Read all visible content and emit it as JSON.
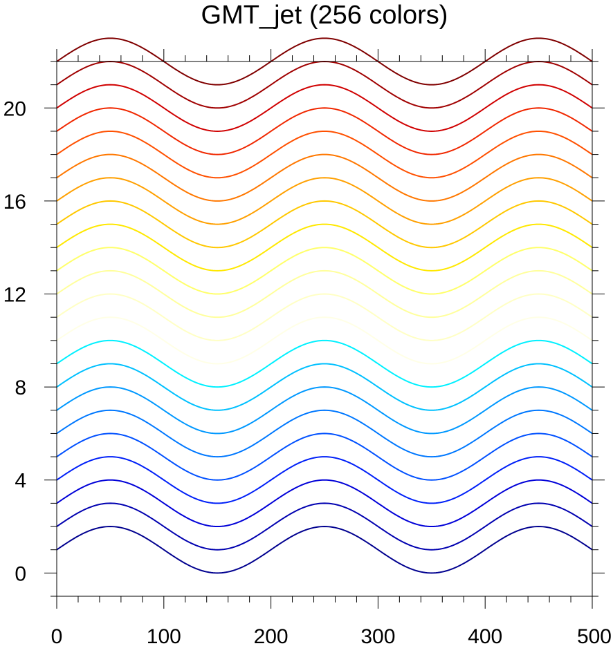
{
  "chart_data": {
    "type": "line",
    "title": "GMT_jet (256 colors)",
    "xlabel": "",
    "ylabel": "",
    "xlim": [
      0,
      500
    ],
    "ylim": [
      -1,
      22
    ],
    "x_ticks": [
      0,
      100,
      200,
      300,
      400,
      500
    ],
    "x_minor_step": 20,
    "y_ticks": [
      0,
      4,
      8,
      12,
      16,
      20
    ],
    "y_minor_step": 1,
    "grid": false,
    "legend": "none",
    "curve": {
      "function": "y = offset + 1 + sin(2*pi*(x/200))",
      "x": [
        0,
        50,
        100,
        150,
        200,
        250,
        300,
        350,
        400,
        450,
        500
      ],
      "y_relative_to_offset": [
        1,
        2,
        1,
        0,
        1,
        2,
        1,
        0,
        1,
        2,
        1
      ]
    },
    "series": [
      {
        "offset": 0,
        "color": "#00008f"
      },
      {
        "offset": 1,
        "color": "#0000b0"
      },
      {
        "offset": 2,
        "color": "#0000d8"
      },
      {
        "offset": 3,
        "color": "#0020f8"
      },
      {
        "offset": 4,
        "color": "#0050ff"
      },
      {
        "offset": 5,
        "color": "#0078ff"
      },
      {
        "offset": 6,
        "color": "#0098ff"
      },
      {
        "offset": 7,
        "color": "#00c0ff"
      },
      {
        "offset": 8,
        "color": "#00f0ff"
      },
      {
        "offset": 9,
        "color": "#ffffe6"
      },
      {
        "offset": 10,
        "color": "#ffffc4"
      },
      {
        "offset": 11,
        "color": "#ffff9c"
      },
      {
        "offset": 12,
        "color": "#ffff6a"
      },
      {
        "offset": 13,
        "color": "#ffe800"
      },
      {
        "offset": 14,
        "color": "#ffc800"
      },
      {
        "offset": 15,
        "color": "#ffa000"
      },
      {
        "offset": 16,
        "color": "#ff7800"
      },
      {
        "offset": 17,
        "color": "#ff5000"
      },
      {
        "offset": 18,
        "color": "#f02800"
      },
      {
        "offset": 19,
        "color": "#d00000"
      },
      {
        "offset": 20,
        "color": "#a00000"
      },
      {
        "offset": 21,
        "color": "#800000"
      }
    ]
  }
}
